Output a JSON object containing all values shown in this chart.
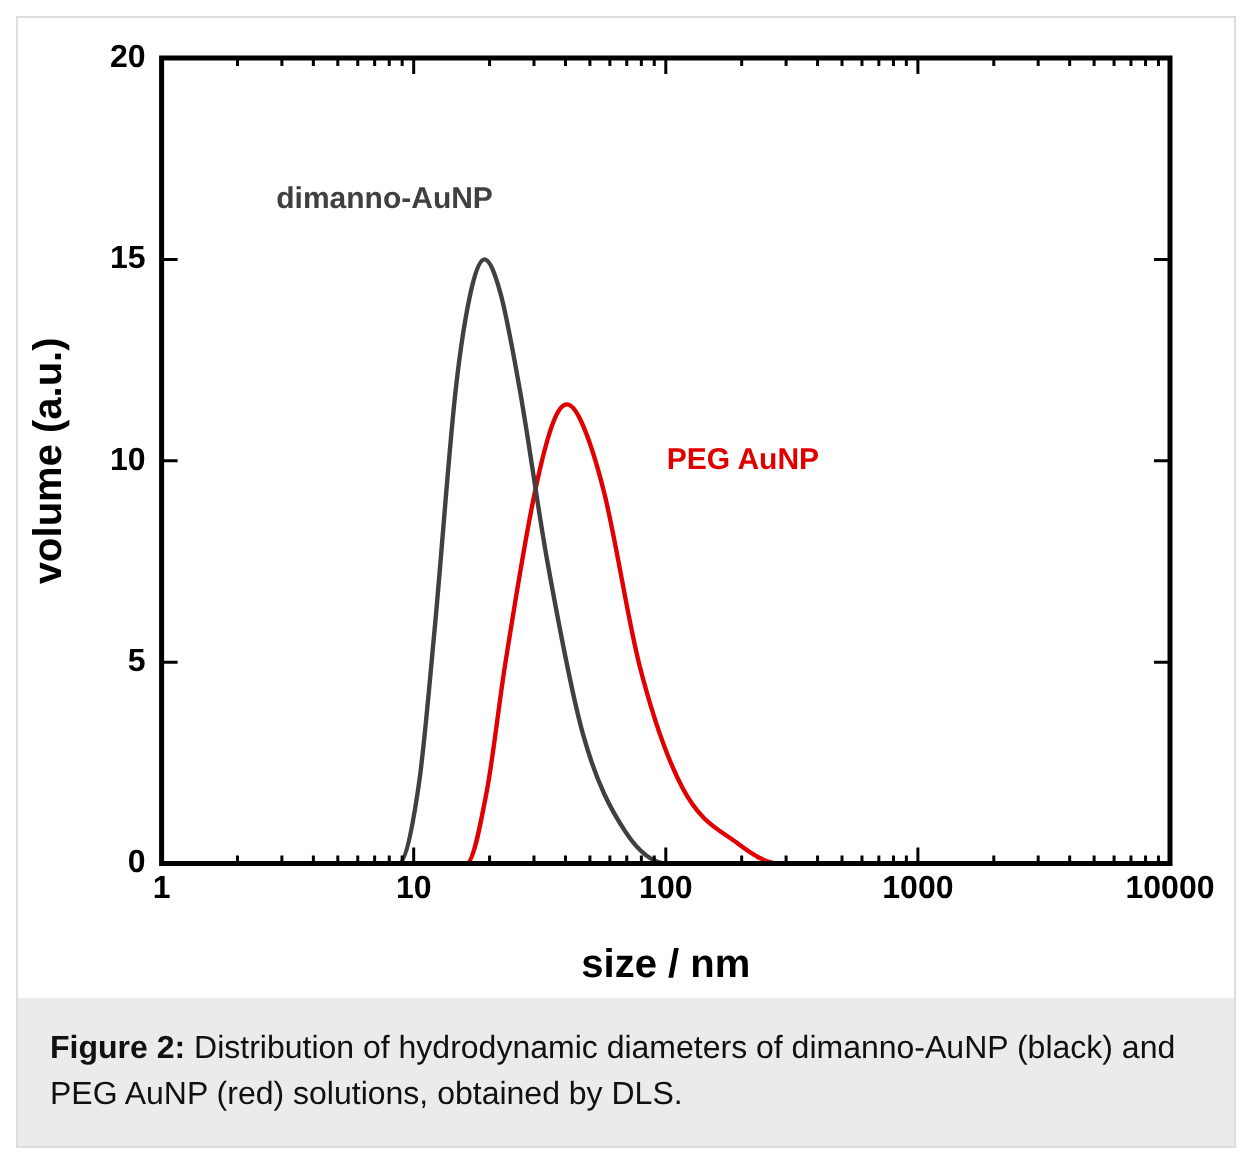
{
  "chart_data": {
    "type": "line",
    "xlabel": "size / nm",
    "ylabel": "volume (a.u.)",
    "log": "x",
    "grid": false,
    "legend": false,
    "marker": "none",
    "line_style": "solid",
    "annotations": [
      "Figure 2: Distribution of hydrodynamic diameters of dimanno-AuNP (black) and PEG AuNP (red) solutions, obtained by DLS."
    ],
    "xlim": [
      1,
      10000
    ],
    "ylim": [
      0,
      20
    ],
    "xticks": [
      1,
      {
        "value": 2,
        "label": null
      },
      {
        "value": 3,
        "label": null
      },
      {
        "value": 4,
        "label": null
      },
      {
        "value": 5,
        "label": null
      },
      {
        "value": 6,
        "label": null
      },
      {
        "value": 7,
        "label": null
      },
      {
        "value": 8,
        "label": null
      },
      {
        "value": 9,
        "label": null
      },
      10,
      {
        "value": 20,
        "label": null
      },
      {
        "value": 30,
        "label": null
      },
      {
        "value": 40,
        "label": null
      },
      {
        "value": 50,
        "label": null
      },
      {
        "value": 60,
        "label": null
      },
      {
        "value": 70,
        "label": null
      },
      {
        "value": 80,
        "label": null
      },
      {
        "value": 90,
        "label": null
      },
      100,
      {
        "value": 200,
        "label": null
      },
      {
        "value": 300,
        "label": null
      },
      {
        "value": 400,
        "label": null
      },
      {
        "value": 500,
        "label": null
      },
      {
        "value": 600,
        "label": null
      },
      {
        "value": 700,
        "label": null
      },
      {
        "value": 800,
        "label": null
      },
      {
        "value": 900,
        "label": null
      },
      1000,
      {
        "value": 2000,
        "label": null
      },
      {
        "value": 3000,
        "label": null
      },
      {
        "value": 4000,
        "label": null
      },
      {
        "value": 5000,
        "label": null
      },
      {
        "value": 6000,
        "label": null
      },
      {
        "value": 7000,
        "label": null
      },
      {
        "value": 8000,
        "label": null
      },
      {
        "value": 9000,
        "label": null
      },
      10000
    ],
    "yticks": [
      0,
      5,
      10,
      15,
      20
    ],
    "series": [
      {
        "name": "dimanno-AuNP",
        "color": "#404040",
        "x": [
          1,
          8.7,
          10.5,
          12.1,
          14.7,
          17,
          19.1,
          22,
          26.3,
          33.9,
          47,
          69,
          102,
          10000
        ],
        "values": [
          0,
          0,
          2,
          5.8,
          11.8,
          14.3,
          15,
          14.2,
          11.8,
          7.5,
          3.2,
          0.8,
          0,
          0
        ]
      },
      {
        "name": "PEG AuNP",
        "color": "#e00000",
        "x": [
          1,
          16.2,
          19.5,
          23,
          30.2,
          36,
          40.5,
          46,
          57,
          78.8,
          116,
          193,
          283,
          10000
        ],
        "values": [
          0,
          0,
          1.8,
          4.9,
          9.2,
          11,
          11.4,
          11,
          9.2,
          4.9,
          1.9,
          0.5,
          0,
          0
        ]
      }
    ]
  }
}
